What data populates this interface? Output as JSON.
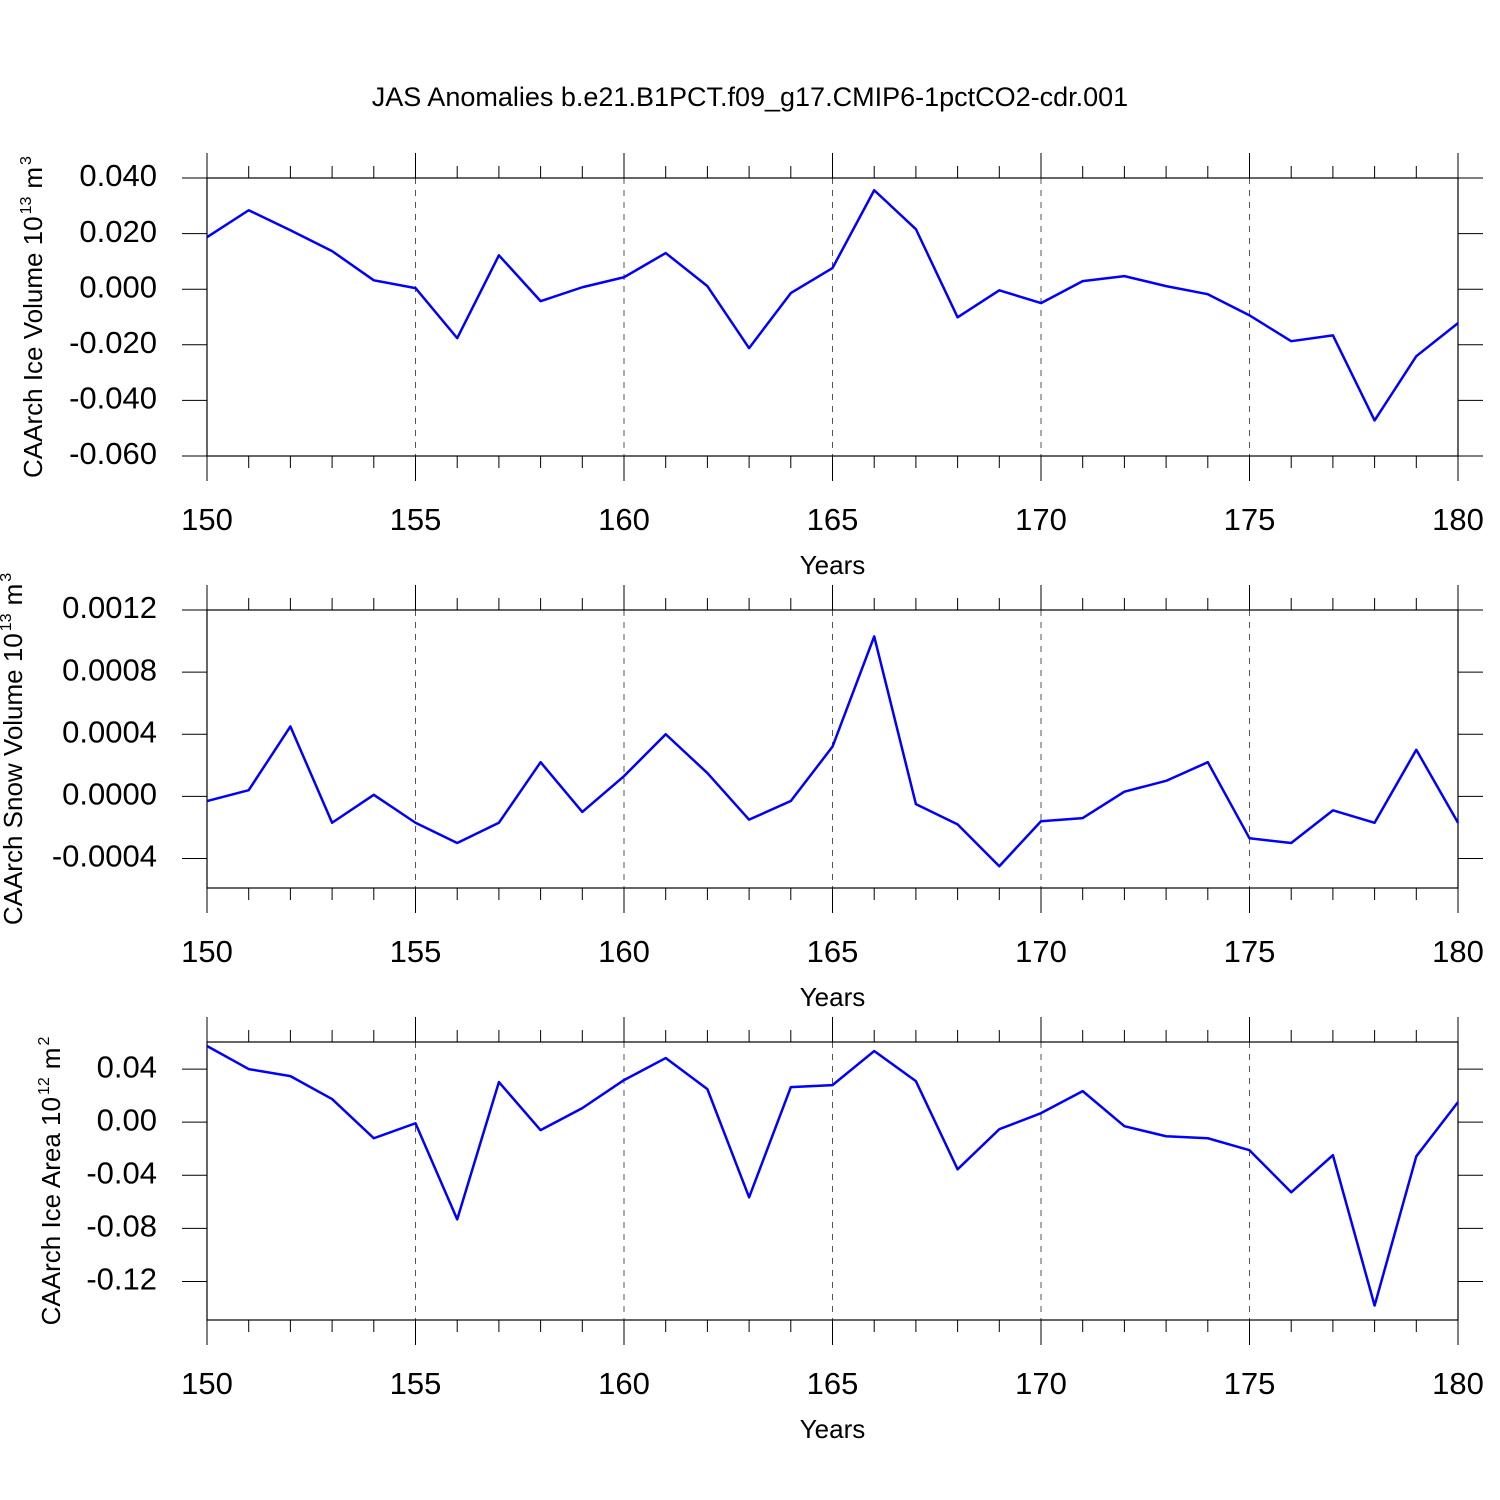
{
  "chart_data": [
    {
      "type": "line",
      "title": "JAS Anomalies b.e21.B1PCT.f09_g17.CMIP6-1pctCO2-cdr.001",
      "ylabel": [
        "CAArch Ice Volume 10",
        "13",
        "m",
        "3"
      ],
      "xlabel": "Years",
      "color": "#0000ff",
      "xgrid": true,
      "x": [
        150,
        151,
        152,
        153,
        154,
        155,
        156,
        157,
        158,
        159,
        160,
        161,
        162,
        163,
        164,
        165,
        166,
        167,
        168,
        169,
        170,
        171,
        172,
        173,
        174,
        175,
        176,
        177,
        178,
        179,
        180
      ],
      "values": [
        0.0187,
        0.0284,
        0.0212,
        0.0137,
        0.0032,
        0.0004,
        -0.0176,
        0.0122,
        -0.0043,
        0.0007,
        0.0043,
        0.013,
        0.0011,
        -0.0212,
        -0.0014,
        0.0076,
        0.0356,
        0.0216,
        -0.0101,
        -0.0004,
        -0.005,
        0.0029,
        0.0047,
        0.0011,
        -0.0018,
        -0.0094,
        -0.0187,
        -0.0166,
        -0.0472,
        -0.0241,
        -0.0122
      ],
      "xlim": [
        150,
        180
      ],
      "xticks": [
        150,
        155,
        160,
        165,
        170,
        175,
        180
      ],
      "xminor_ticks": [
        151,
        152,
        153,
        154,
        156,
        157,
        158,
        159,
        161,
        162,
        163,
        164,
        166,
        167,
        168,
        169,
        171,
        172,
        173,
        174,
        176,
        177,
        178,
        179
      ],
      "ylim": [
        -0.06,
        0.04
      ],
      "yticks": [
        {
          "value": -0.06,
          "label": "-0.060"
        },
        {
          "value": -0.04,
          "label": "-0.040"
        },
        {
          "value": -0.02,
          "label": "-0.020"
        },
        {
          "value": 0,
          "label": "0.000"
        },
        {
          "value": 0.02,
          "label": "0.020"
        },
        {
          "value": 0.04,
          "label": "0.040"
        }
      ]
    },
    {
      "type": "line",
      "ylabel": [
        "CAArch Snow Volume 10",
        "13",
        "m",
        "3"
      ],
      "xlabel": "Years",
      "color": "#0000ff",
      "xgrid": true,
      "x": [
        150,
        151,
        152,
        153,
        154,
        155,
        156,
        157,
        158,
        159,
        160,
        161,
        162,
        163,
        164,
        165,
        166,
        167,
        168,
        169,
        170,
        171,
        172,
        173,
        174,
        175,
        176,
        177,
        178,
        179,
        180
      ],
      "values": [
        -3e-05,
        4e-05,
        0.00045,
        -0.00017,
        1e-05,
        -0.00017,
        -0.0003,
        -0.00017,
        0.00022,
        -0.0001,
        0.00013,
        0.0004,
        0.00015,
        -0.00015,
        -3e-05,
        0.00032,
        0.00103,
        -5e-05,
        -0.00018,
        -0.00045,
        -0.00016,
        -0.00014,
        3e-05,
        0.0001,
        0.00022,
        -0.00027,
        -0.0003,
        -9e-05,
        -0.00017,
        0.0003,
        -0.00017
      ],
      "xlim": [
        150,
        180
      ],
      "xticks": [
        150,
        155,
        160,
        165,
        170,
        175,
        180
      ],
      "xminor_ticks": [
        151,
        152,
        153,
        154,
        156,
        157,
        158,
        159,
        161,
        162,
        163,
        164,
        166,
        167,
        168,
        169,
        171,
        172,
        173,
        174,
        176,
        177,
        178,
        179
      ],
      "ylim": [
        -0.00059,
        0.0012
      ],
      "yticks": [
        -0.0004,
        {
          "value": 0,
          "label": "0.0000"
        },
        0.0004,
        0.0008,
        0.0012
      ]
    },
    {
      "type": "line",
      "ylabel": [
        "CAArch Ice Area 10",
        "12",
        "m",
        "2"
      ],
      "xlabel": "Years",
      "color": "#0000ff",
      "xgrid": true,
      "x": [
        150,
        151,
        152,
        153,
        154,
        155,
        156,
        157,
        158,
        159,
        160,
        161,
        162,
        163,
        164,
        165,
        166,
        167,
        168,
        169,
        170,
        171,
        172,
        173,
        174,
        175,
        176,
        177,
        178,
        179,
        180
      ],
      "values": [
        0.0574,
        0.04,
        0.0347,
        0.0174,
        -0.0121,
        -0.0008,
        -0.0732,
        0.0302,
        -0.006,
        0.0106,
        0.0317,
        0.0483,
        0.0249,
        -0.0566,
        0.0264,
        0.0279,
        0.0536,
        0.0309,
        -0.0355,
        -0.0053,
        0.0068,
        0.0234,
        -0.003,
        -0.0106,
        -0.0121,
        -0.0211,
        -0.0528,
        -0.0249,
        -0.1381,
        -0.0257,
        0.0151
      ],
      "xlim": [
        150,
        180
      ],
      "xticks": [
        150,
        155,
        160,
        165,
        170,
        175,
        180
      ],
      "xminor_ticks": [
        151,
        152,
        153,
        154,
        156,
        157,
        158,
        159,
        161,
        162,
        163,
        164,
        166,
        167,
        168,
        169,
        171,
        172,
        173,
        174,
        176,
        177,
        178,
        179
      ],
      "ylim": [
        -0.149,
        0.0604
      ],
      "yticks": [
        -0.12,
        -0.08,
        -0.04,
        {
          "value": 0,
          "label": "0.00"
        },
        0.04
      ]
    }
  ]
}
